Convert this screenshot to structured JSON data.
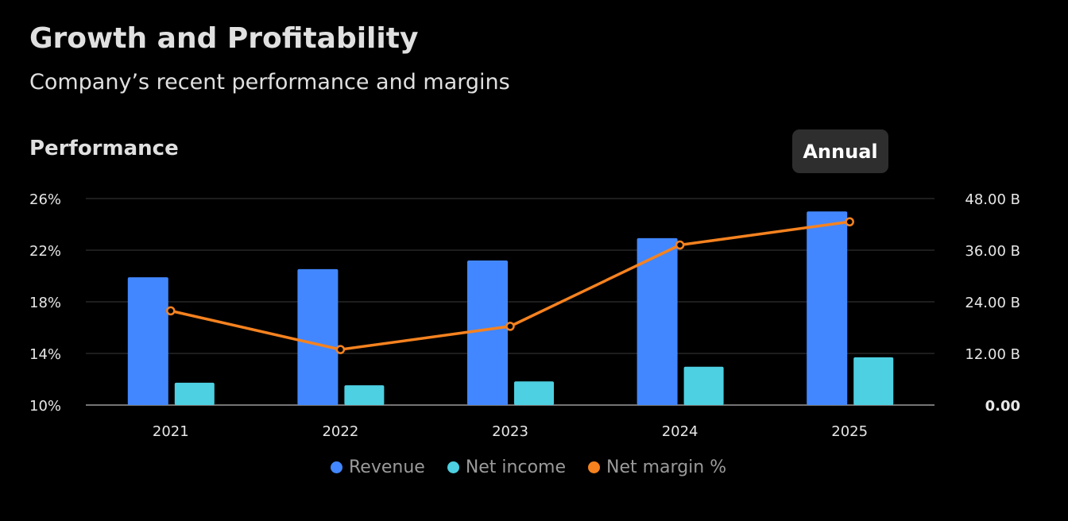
{
  "header": {
    "title": "Growth and Profitability",
    "subtitle": "Company’s recent performance and margins"
  },
  "section_title": "Performance",
  "period_button": "Annual",
  "colors": {
    "revenue": "#4287ff",
    "net_income": "#4dd0e1",
    "net_margin": "#f5821f"
  },
  "chart_data": {
    "type": "bar",
    "categories": [
      "2021",
      "2022",
      "2023",
      "2024",
      "2025"
    ],
    "series": [
      {
        "name": "Revenue",
        "axis": "right",
        "type": "bar",
        "values": [
          29.7,
          31.6,
          33.6,
          38.8,
          45.0
        ]
      },
      {
        "name": "Net income",
        "axis": "right",
        "type": "bar",
        "values": [
          5.2,
          4.6,
          5.5,
          8.9,
          11.1
        ]
      },
      {
        "name": "Net margin %",
        "axis": "left",
        "type": "line",
        "values": [
          17.3,
          14.3,
          16.1,
          22.4,
          24.2
        ]
      }
    ],
    "left_axis": {
      "range": [
        10,
        26
      ],
      "ticks": [
        "10%",
        "14%",
        "18%",
        "22%",
        "26%"
      ],
      "tick_values": [
        10,
        14,
        18,
        22,
        26
      ]
    },
    "right_axis": {
      "range": [
        0,
        48
      ],
      "ticks": [
        "0.00",
        "12.00 B",
        "24.00 B",
        "36.00 B",
        "48.00 B"
      ],
      "tick_values": [
        0,
        12,
        24,
        36,
        48
      ]
    },
    "grid": true,
    "legend_position": "bottom-center"
  }
}
